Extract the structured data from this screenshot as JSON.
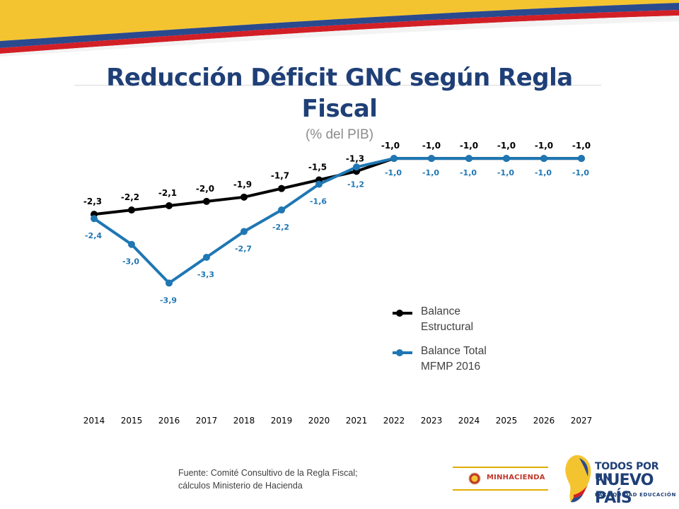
{
  "slide": {
    "title": "Reducción Déficit GNC según Regla Fiscal",
    "subtitle": "(% del PIB)",
    "footer_line1": "Fuente: Comité Consultivo de la Regla Fiscal;",
    "footer_line2": "cálculos Ministerio de Hacienda",
    "logo_ministry": "MINHACIENDA",
    "logo_campaign_line1": "TODOS POR UN",
    "logo_campaign_line2": "NUEVO PAÍS",
    "logo_campaign_line3": "PAZ  EQUIDAD  EDUCACIÓN"
  },
  "colors": {
    "title": "#1f3f77",
    "series_structural": "#000000",
    "series_total": "#1f77b4",
    "flag_yellow": "#f4c430",
    "flag_blue": "#2a4a8e",
    "flag_red": "#d21f26"
  },
  "chart_data": {
    "type": "line",
    "x": [
      "2014",
      "2015",
      "2016",
      "2017",
      "2018",
      "2019",
      "2020",
      "2021",
      "2022",
      "2023",
      "2024",
      "2025",
      "2026",
      "2027"
    ],
    "series": [
      {
        "name": "Balance Estructural",
        "values": [
          -2.3,
          -2.2,
          -2.1,
          -2.0,
          -1.9,
          -1.7,
          -1.5,
          -1.3,
          -1.0,
          -1.0,
          -1.0,
          -1.0,
          -1.0,
          -1.0
        ],
        "labels": [
          "-2,3",
          "-2,2",
          "-2,1",
          "-2,0",
          "-1,9",
          "-1,7",
          "-1,5",
          "-1,3",
          "-1,0",
          "-1,0",
          "-1,0",
          "-1,0",
          "-1,0",
          "-1,0"
        ]
      },
      {
        "name": "Balance Total MFMP 2016",
        "values": [
          -2.4,
          -3.0,
          -3.9,
          -3.3,
          -2.7,
          -2.2,
          -1.6,
          -1.2,
          -1.0,
          -1.0,
          -1.0,
          -1.0,
          -1.0,
          -1.0
        ],
        "labels": [
          "-2,4",
          "-3,0",
          "-3,9",
          "-3,3",
          "-2,7",
          "-2,2",
          "-1,6",
          "-1,2",
          "-1,0",
          "-1,0",
          "-1,0",
          "-1,0",
          "-1,0",
          "-1,0"
        ]
      }
    ],
    "legend": [
      "Balance Estructural",
      "Balance Total MFMP 2016"
    ],
    "legend_lines": [
      [
        "Balance",
        "Estructural"
      ],
      [
        "Balance Total",
        "MFMP 2016"
      ]
    ],
    "legend_position": "lower-right",
    "ylim": [
      -4.2,
      -0.8
    ],
    "grid": false,
    "y_axis_visible": false
  }
}
